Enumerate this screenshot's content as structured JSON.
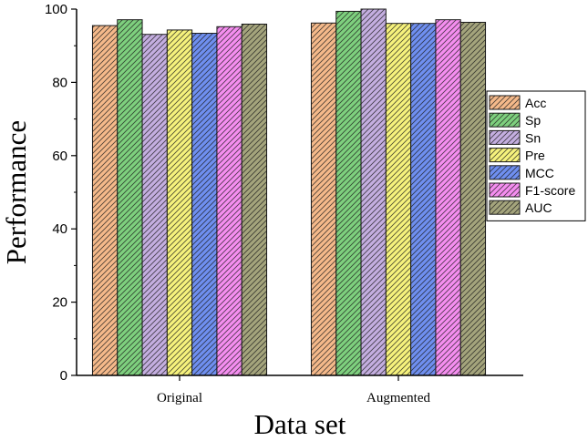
{
  "chart_data": {
    "type": "bar",
    "title": "",
    "xlabel": "Data set",
    "ylabel": "Performance",
    "categories": [
      "Original",
      "Augmented"
    ],
    "ylim": [
      0,
      100
    ],
    "yticks": [
      0,
      20,
      40,
      60,
      80,
      100
    ],
    "grid": false,
    "legend_position": "right",
    "bar_pattern": "diagonal-hatch",
    "series": [
      {
        "name": "Acc",
        "values": [
          95.5,
          96.2
        ],
        "color": "#f5b98a"
      },
      {
        "name": "Sp",
        "values": [
          97.1,
          99.4
        ],
        "color": "#7ed07e"
      },
      {
        "name": "Sn",
        "values": [
          93.1,
          100.0
        ],
        "color": "#c4aee0"
      },
      {
        "name": "Pre",
        "values": [
          94.3,
          96.1
        ],
        "color": "#f6f27c"
      },
      {
        "name": "MCC",
        "values": [
          93.4,
          96.1
        ],
        "color": "#6f8ff0"
      },
      {
        "name": "F1-score",
        "values": [
          95.2,
          97.1
        ],
        "color": "#f58ef0"
      },
      {
        "name": "AUC",
        "values": [
          95.9,
          96.4
        ],
        "color": "#a4a47c"
      }
    ]
  }
}
